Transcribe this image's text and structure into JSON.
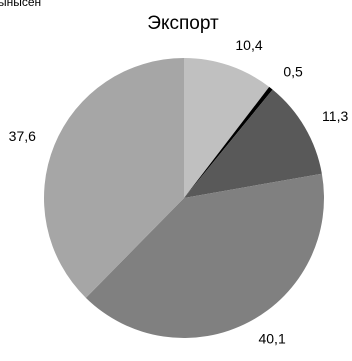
{
  "corner_text": "ынысен",
  "chart_data": {
    "type": "pie",
    "title": "Экспорт",
    "values": [
      10.4,
      0.5,
      11.3,
      40.1,
      37.6
    ],
    "value_labels": [
      "10,4",
      "0,5",
      "11,3",
      "40,1",
      "37,6"
    ],
    "colors": [
      "#c0c0c0",
      "#000000",
      "#595959",
      "#808080",
      "#a6a6a6"
    ]
  }
}
